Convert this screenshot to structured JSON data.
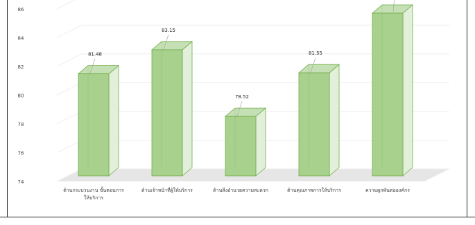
{
  "chart_data": {
    "type": "bar",
    "categories": [
      "ด้านกระบวนงาน ขั้นตอนการให้บริการ",
      "ด้านเจ้าหน้าที่ผู้ให้บริการ",
      "ด้านสิ่งอำนวยความสะดวก",
      "ด้านคุณภาพการให้บริการ",
      "ความผูกพันต่อองค์กร"
    ],
    "category_lines": [
      [
        "ด้านกระบวนงาน ขั้นตอนการ",
        "ให้บริการ"
      ],
      [
        "ด้านเจ้าหน้าที่ผู้ให้บริการ"
      ],
      [
        "ด้านสิ่งอำนวยความสะดวก"
      ],
      [
        "ด้านคุณภาพการให้บริการ"
      ],
      [
        "ความผูกพันต่อองค์กร"
      ]
    ],
    "values": [
      81.48,
      83.15,
      78.52,
      81.55,
      85.7
    ],
    "data_labels": [
      "81.48",
      "83.15",
      "78.52",
      "81.55",
      ""
    ],
    "y_ticks": [
      "74",
      "76",
      "78",
      "80",
      "82",
      "84",
      "86"
    ],
    "ylim": [
      74,
      87
    ],
    "grid": true,
    "style": "3d-column",
    "colors": {
      "bar_front": "#a9d18e",
      "bar_side": "#e2efda",
      "bar_top": "#c5e0b4",
      "bar_stroke": "#70ad47",
      "floor": "#e6e6e6",
      "grid": "#eeeeee",
      "text": "#404040"
    }
  }
}
